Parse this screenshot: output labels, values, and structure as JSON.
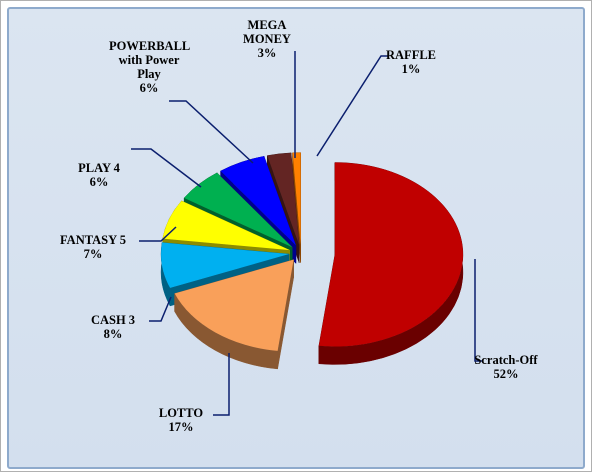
{
  "chart_data": {
    "type": "pie",
    "categories": [
      "Scratch-Off",
      "LOTTO",
      "CASH 3",
      "FANTASY 5",
      "PLAY 4",
      "POWERBALL with Power Play",
      "MEGA MONEY",
      "RAFFLE"
    ],
    "values": [
      52,
      17,
      8,
      7,
      6,
      6,
      3,
      1
    ],
    "value_labels": [
      "52%",
      "17%",
      "8%",
      "7%",
      "6%",
      "6%",
      "3%",
      "1%"
    ],
    "colors": [
      "#c00000",
      "#f9a05a",
      "#00b0f0",
      "#ffff00",
      "#00b050",
      "#0000ff",
      "#632523",
      "#ff8000"
    ]
  }
}
